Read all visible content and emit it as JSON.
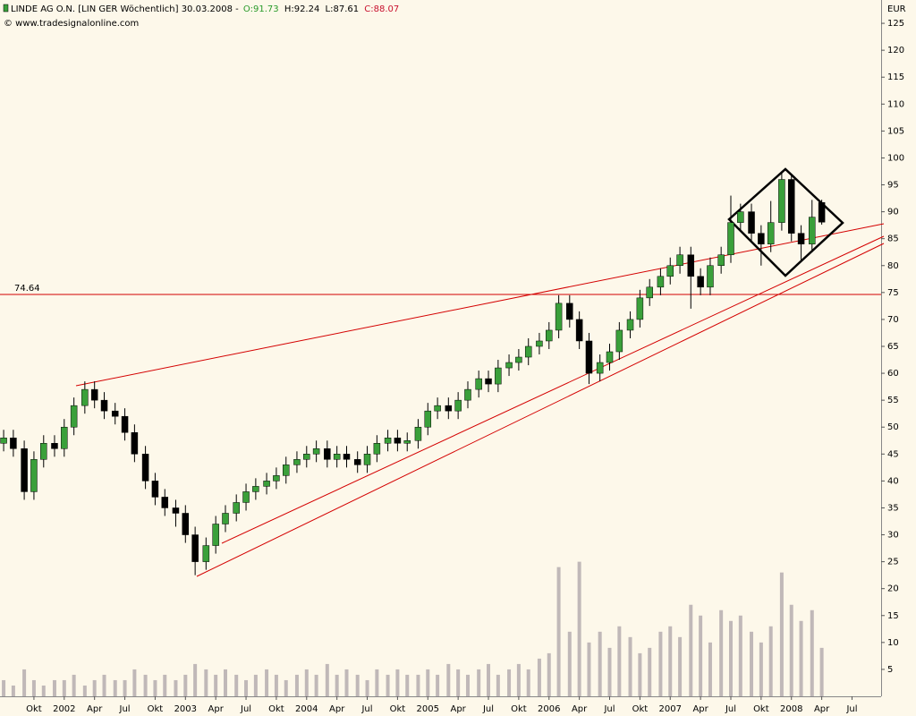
{
  "header": {
    "title": "LINDE AG O.N. [LIN GER  Wöchentlich] 30.03.2008 -",
    "open": "O:91.73",
    "high": "H:92.24",
    "low": "L:87.61",
    "close": "C:88.07",
    "source": "© www.tradesignalonline.com"
  },
  "chart_data": {
    "type": "candlestick",
    "y_unit": "EUR",
    "x": [
      2001.5,
      2001.58,
      2001.67,
      2001.75,
      2001.83,
      2001.92,
      2002.0,
      2002.08,
      2002.17,
      2002.25,
      2002.33,
      2002.42,
      2002.5,
      2002.58,
      2002.67,
      2002.75,
      2002.83,
      2002.92,
      2003.0,
      2003.08,
      2003.17,
      2003.25,
      2003.33,
      2003.42,
      2003.5,
      2003.58,
      2003.67,
      2003.75,
      2003.83,
      2003.92,
      2004.0,
      2004.08,
      2004.17,
      2004.25,
      2004.33,
      2004.42,
      2004.5,
      2004.58,
      2004.67,
      2004.75,
      2004.83,
      2004.92,
      2005.0,
      2005.08,
      2005.17,
      2005.25,
      2005.33,
      2005.42,
      2005.5,
      2005.58,
      2005.67,
      2005.75,
      2005.83,
      2005.92,
      2006.0,
      2006.08,
      2006.17,
      2006.25,
      2006.33,
      2006.42,
      2006.5,
      2006.58,
      2006.67,
      2006.75,
      2006.83,
      2006.92,
      2007.0,
      2007.08,
      2007.17,
      2007.25,
      2007.33,
      2007.42,
      2007.5,
      2007.58,
      2007.67,
      2007.75,
      2007.83,
      2007.92,
      2008.0,
      2008.08,
      2008.17,
      2008.25
    ],
    "open": [
      47,
      48,
      46,
      38,
      44,
      47,
      46,
      50,
      54,
      57,
      55,
      53,
      52,
      49,
      45,
      40,
      37,
      35,
      34,
      30,
      25,
      28,
      32,
      34,
      36,
      38,
      39,
      40,
      41,
      43,
      44,
      45,
      46,
      44,
      45,
      44,
      43,
      45,
      47,
      48,
      47,
      47.5,
      50,
      53,
      54,
      53,
      55,
      57,
      59,
      58,
      61,
      62,
      63,
      65,
      66,
      68,
      73,
      70,
      66,
      60,
      62,
      64,
      68,
      70,
      74,
      76,
      78,
      80,
      82,
      78,
      76,
      80,
      82,
      88,
      90,
      86,
      84,
      88,
      96,
      86,
      84,
      91.73
    ],
    "high": [
      49.5,
      49.5,
      47.5,
      45.5,
      48.5,
      48.5,
      51.5,
      55.5,
      58.5,
      58.5,
      56.5,
      54.5,
      53.5,
      50.5,
      46.5,
      41.5,
      38.5,
      36.5,
      35.5,
      31.5,
      29.5,
      33.5,
      35.5,
      37.5,
      39.5,
      40.5,
      41.5,
      42.5,
      44.5,
      45.5,
      46.5,
      47.5,
      47.5,
      46.5,
      46.5,
      45.5,
      46.5,
      48.5,
      49.5,
      49.5,
      49,
      51.5,
      54.5,
      55.5,
      55.5,
      56.5,
      58.5,
      60.5,
      60.5,
      62.5,
      63.5,
      64.5,
      66.5,
      67.5,
      69.5,
      74.5,
      74.5,
      71.5,
      67.5,
      63.5,
      65.5,
      69.5,
      71.5,
      75.5,
      77.5,
      79.5,
      81.5,
      83.5,
      83.5,
      79.5,
      81.5,
      83.5,
      93,
      91.5,
      91.5,
      87.5,
      92,
      97.5,
      97,
      87.5,
      92.2,
      92.24
    ],
    "low": [
      45.5,
      44.5,
      36.5,
      36.5,
      42.5,
      44.5,
      44.5,
      48.5,
      52.5,
      53.5,
      51.5,
      50.5,
      47.5,
      43.5,
      38.5,
      35.5,
      33.5,
      31.5,
      28.5,
      22.5,
      23.5,
      26.5,
      30.5,
      32.5,
      34.5,
      36.5,
      37.5,
      38.5,
      39.5,
      41.5,
      42.5,
      43.5,
      42.5,
      42.5,
      42.5,
      41.5,
      41.5,
      43.5,
      45.5,
      45.5,
      45.5,
      46,
      48.5,
      51.5,
      51.5,
      51.5,
      53.5,
      55.5,
      56.5,
      56.5,
      59.5,
      60.5,
      61.5,
      63.5,
      64.5,
      66.5,
      68.5,
      64.5,
      58,
      58.5,
      60.5,
      62.5,
      66.5,
      68.5,
      72.5,
      74.5,
      76.5,
      78.5,
      72,
      74.5,
      74.5,
      78.5,
      80.5,
      86.5,
      84.5,
      80,
      82.5,
      86.5,
      84.5,
      81,
      82.5,
      87.61
    ],
    "close": [
      48,
      46,
      38,
      44,
      47,
      46,
      50,
      54,
      57,
      55,
      53,
      52,
      49,
      45,
      40,
      37,
      35,
      34,
      30,
      25,
      28,
      32,
      34,
      36,
      38,
      39,
      40,
      41,
      43,
      44,
      45,
      46,
      44,
      45,
      44,
      43,
      45,
      47,
      48,
      47,
      47.5,
      50,
      53,
      54,
      53,
      55,
      57,
      59,
      58,
      61,
      62,
      63,
      65,
      66,
      68,
      73,
      70,
      66,
      60,
      62,
      64,
      68,
      70,
      74,
      76,
      78,
      80,
      82,
      78,
      76,
      80,
      82,
      88,
      90,
      86,
      84,
      88,
      96,
      86,
      84,
      89,
      88.07
    ],
    "volume": [
      3,
      2,
      5,
      3,
      2,
      3,
      3,
      4,
      2,
      3,
      4,
      3,
      3,
      5,
      4,
      3,
      4,
      3,
      4,
      6,
      5,
      4,
      5,
      4,
      3,
      4,
      5,
      4,
      3,
      4,
      5,
      4,
      6,
      4,
      5,
      4,
      3,
      5,
      4,
      5,
      4,
      4,
      5,
      4,
      6,
      5,
      4,
      5,
      6,
      4,
      5,
      6,
      5,
      7,
      8,
      24,
      12,
      25,
      10,
      12,
      9,
      13,
      11,
      8,
      9,
      12,
      13,
      11,
      17,
      15,
      10,
      16,
      14,
      15,
      12,
      10,
      13,
      23,
      17,
      14,
      16,
      9
    ],
    "up_color": "#3aa03a",
    "down_color": "#000000",
    "volume_color": "#c0b8b8",
    "hline_color": "#d40000",
    "hline": 74.64,
    "xlim": [
      2001.47,
      2008.74
    ],
    "ylim": [
      0,
      129
    ],
    "xticks": [
      {
        "value": 2001.75,
        "label": "Okt"
      },
      {
        "value": 2002,
        "label": "2002"
      },
      {
        "value": 2002.25,
        "label": "Apr"
      },
      {
        "value": 2002.5,
        "label": "Jul"
      },
      {
        "value": 2002.75,
        "label": "Okt"
      },
      {
        "value": 2003,
        "label": "2003"
      },
      {
        "value": 2003.25,
        "label": "Apr"
      },
      {
        "value": 2003.5,
        "label": "Jul"
      },
      {
        "value": 2003.75,
        "label": "Okt"
      },
      {
        "value": 2004,
        "label": "2004"
      },
      {
        "value": 2004.25,
        "label": "Apr"
      },
      {
        "value": 2004.5,
        "label": "Jul"
      },
      {
        "value": 2004.75,
        "label": "Okt"
      },
      {
        "value": 2005,
        "label": "2005"
      },
      {
        "value": 2005.25,
        "label": "Apr"
      },
      {
        "value": 2005.5,
        "label": "Jul"
      },
      {
        "value": 2005.75,
        "label": "Okt"
      },
      {
        "value": 2006,
        "label": "2006"
      },
      {
        "value": 2006.25,
        "label": "Apr"
      },
      {
        "value": 2006.5,
        "label": "Jul"
      },
      {
        "value": 2006.75,
        "label": "Okt"
      },
      {
        "value": 2007,
        "label": "2007"
      },
      {
        "value": 2007.25,
        "label": "Apr"
      },
      {
        "value": 2007.5,
        "label": "Jul"
      },
      {
        "value": 2007.75,
        "label": "Okt"
      },
      {
        "value": 2008,
        "label": "2008"
      },
      {
        "value": 2008.25,
        "label": "Apr"
      },
      {
        "value": 2008.5,
        "label": "Jul"
      }
    ],
    "yticks": [
      5,
      10,
      15,
      20,
      25,
      30,
      35,
      40,
      45,
      50,
      55,
      60,
      65,
      70,
      75,
      80,
      85,
      90,
      95,
      100,
      105,
      110,
      115,
      120,
      125
    ]
  }
}
